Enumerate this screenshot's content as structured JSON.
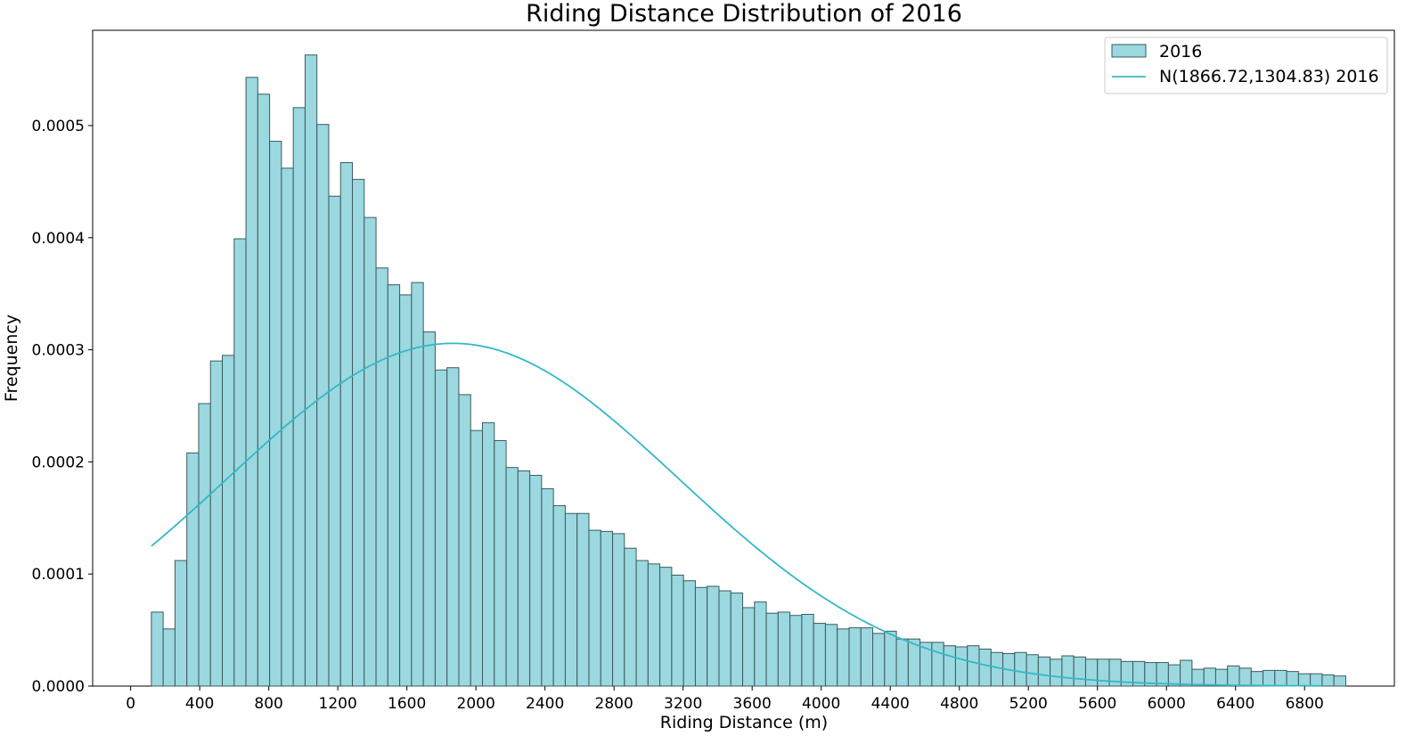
{
  "chart_data": {
    "type": "bar",
    "title": "Riding Distance Distribution of 2016",
    "xlabel": "Riding Distance (m)",
    "ylabel": "Frequency",
    "xlim": [
      -220,
      7320
    ],
    "ylim": [
      0,
      0.000585
    ],
    "xticks": [
      0,
      400,
      800,
      1200,
      1600,
      2000,
      2400,
      2800,
      3200,
      3600,
      4000,
      4400,
      4800,
      5200,
      5600,
      6000,
      6400,
      6800
    ],
    "yticks": [
      0.0,
      0.0001,
      0.0002,
      0.0003,
      0.0004,
      0.0005
    ],
    "ytick_labels": [
      "0.0000",
      "0.0001",
      "0.0002",
      "0.0003",
      "0.0004",
      "0.0005"
    ],
    "grid": false,
    "legend_position": "top-right",
    "histogram": {
      "name": "2016",
      "color": "#9bd8df",
      "edge_color": "#3d5a5e",
      "bin_start": 120,
      "bin_width": 68.5,
      "values": [
        6.6e-05,
        5.1e-05,
        0.000112,
        0.000208,
        0.000252,
        0.00029,
        0.000295,
        0.000399,
        0.000543,
        0.000528,
        0.000486,
        0.000462,
        0.000516,
        0.000563,
        0.000501,
        0.000437,
        0.000467,
        0.000452,
        0.000418,
        0.000373,
        0.000358,
        0.000349,
        0.00036,
        0.000316,
        0.000282,
        0.000284,
        0.00026,
        0.000228,
        0.000235,
        0.000219,
        0.000195,
        0.000192,
        0.000188,
        0.000176,
        0.000161,
        0.000154,
        0.000154,
        0.000139,
        0.000138,
        0.000136,
        0.000123,
        0.000112,
        0.000109,
        0.000106,
        9.9e-05,
        9.4e-05,
        8.8e-05,
        8.9e-05,
        8.5e-05,
        8.3e-05,
        7e-05,
        7.5e-05,
        6.5e-05,
        6.6e-05,
        6.3e-05,
        6.4e-05,
        5.6e-05,
        5.5e-05,
        5.1e-05,
        5.2e-05,
        5.2e-05,
        4.7e-05,
        4.9e-05,
        4.2e-05,
        4.2e-05,
        3.9e-05,
        3.9e-05,
        3.6e-05,
        3.5e-05,
        3.6e-05,
        3.3e-05,
        3e-05,
        2.9e-05,
        3e-05,
        2.8e-05,
        2.6e-05,
        2.4e-05,
        2.7e-05,
        2.6e-05,
        2.4e-05,
        2.4e-05,
        2.4e-05,
        2.2e-05,
        2.2e-05,
        2.1e-05,
        2.1e-05,
        1.9e-05,
        2.3e-05,
        1.5e-05,
        1.6e-05,
        1.5e-05,
        1.8e-05,
        1.6e-05,
        1.3e-05,
        1.4e-05,
        1.4e-05,
        1.3e-05,
        1.1e-05,
        1.1e-05,
        1e-05,
        9e-06
      ]
    },
    "normal_curve": {
      "name": "N(1866.72,1304.83) 2016",
      "color": "#33b8c6",
      "mean": 1866.72,
      "std": 1304.83,
      "x_range": [
        120,
        6900
      ]
    }
  }
}
